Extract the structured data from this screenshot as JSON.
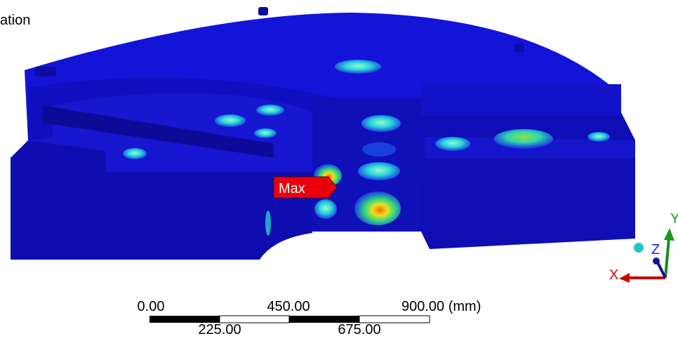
{
  "header": {
    "title": "ation"
  },
  "probe": {
    "label": "Max"
  },
  "scale_bar": {
    "top_labels": [
      "0.00",
      "450.00",
      "900.00 (mm)"
    ],
    "bottom_labels": [
      "225.00",
      "675.00"
    ]
  },
  "triad": {
    "x": "X",
    "y": "Y",
    "z": "Z"
  }
}
